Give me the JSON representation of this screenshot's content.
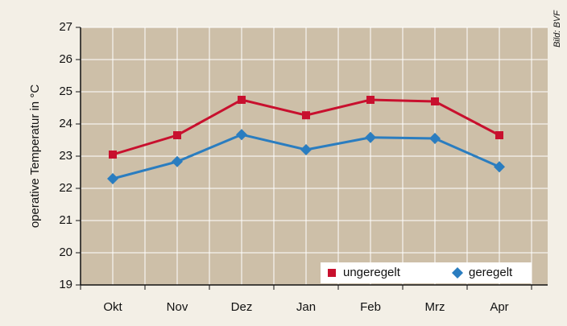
{
  "chart_data": {
    "type": "line",
    "y_label": "operative Temperatur in °C",
    "credit": "Bild: BVF",
    "categories": [
      "Okt",
      "Nov",
      "Dez",
      "Jan",
      "Feb",
      "Mrz",
      "Apr"
    ],
    "series": [
      {
        "name": "ungeregelt",
        "color": "#c8102e",
        "marker": "square",
        "values": [
          23.05,
          23.65,
          24.75,
          24.27,
          24.75,
          24.7,
          23.65
        ]
      },
      {
        "name": "geregelt",
        "color": "#2a7dc0",
        "marker": "diamond",
        "values": [
          22.3,
          22.83,
          23.67,
          23.2,
          23.58,
          23.55,
          22.67
        ]
      }
    ],
    "ylim": [
      19,
      27
    ],
    "yticks": [
      19,
      20,
      21,
      22,
      23,
      24,
      25,
      26,
      27
    ],
    "grid": true,
    "legend": "lower right"
  }
}
